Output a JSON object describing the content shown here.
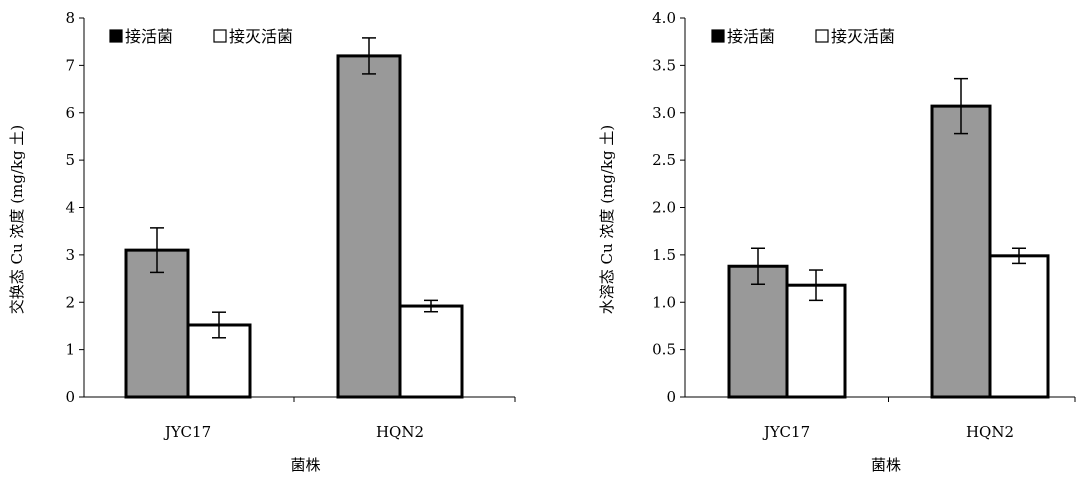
{
  "chart_data": [
    {
      "type": "bar",
      "title": "",
      "categories": [
        "JYC17",
        "HQN2"
      ],
      "xlabel": "菌株",
      "ylabel": "交换态 Cu 浓度 (mg/kg 土)",
      "ylim": [
        0,
        8
      ],
      "yticks": [
        "0",
        "1",
        "2",
        "3",
        "4",
        "5",
        "6",
        "7",
        "8"
      ],
      "legend_position": "top-left",
      "grid": false,
      "series": [
        {
          "name": "接活菌",
          "color": "#999999",
          "values": [
            3.1,
            7.2
          ],
          "errors": [
            0.47,
            0.38
          ]
        },
        {
          "name": "接灭活菌",
          "color": "#ffffff",
          "values": [
            1.52,
            1.92
          ],
          "errors": [
            0.27,
            0.12
          ]
        }
      ]
    },
    {
      "type": "bar",
      "title": "",
      "categories": [
        "JYC17",
        "HQN2"
      ],
      "xlabel": "菌株",
      "ylabel": "水溶态 Cu 浓度 (mg/kg 土)",
      "ylim": [
        0,
        4
      ],
      "yticks": [
        "0",
        "0.5",
        "1.0",
        "1.5",
        "2.0",
        "2.5",
        "3.0",
        "3.5",
        "4.0"
      ],
      "legend_position": "top-left",
      "grid": false,
      "series": [
        {
          "name": "接活菌",
          "color": "#999999",
          "values": [
            1.38,
            3.07
          ],
          "errors": [
            0.19,
            0.29
          ]
        },
        {
          "name": "接灭活菌",
          "color": "#ffffff",
          "values": [
            1.18,
            1.49
          ],
          "errors": [
            0.16,
            0.08
          ]
        }
      ]
    }
  ]
}
